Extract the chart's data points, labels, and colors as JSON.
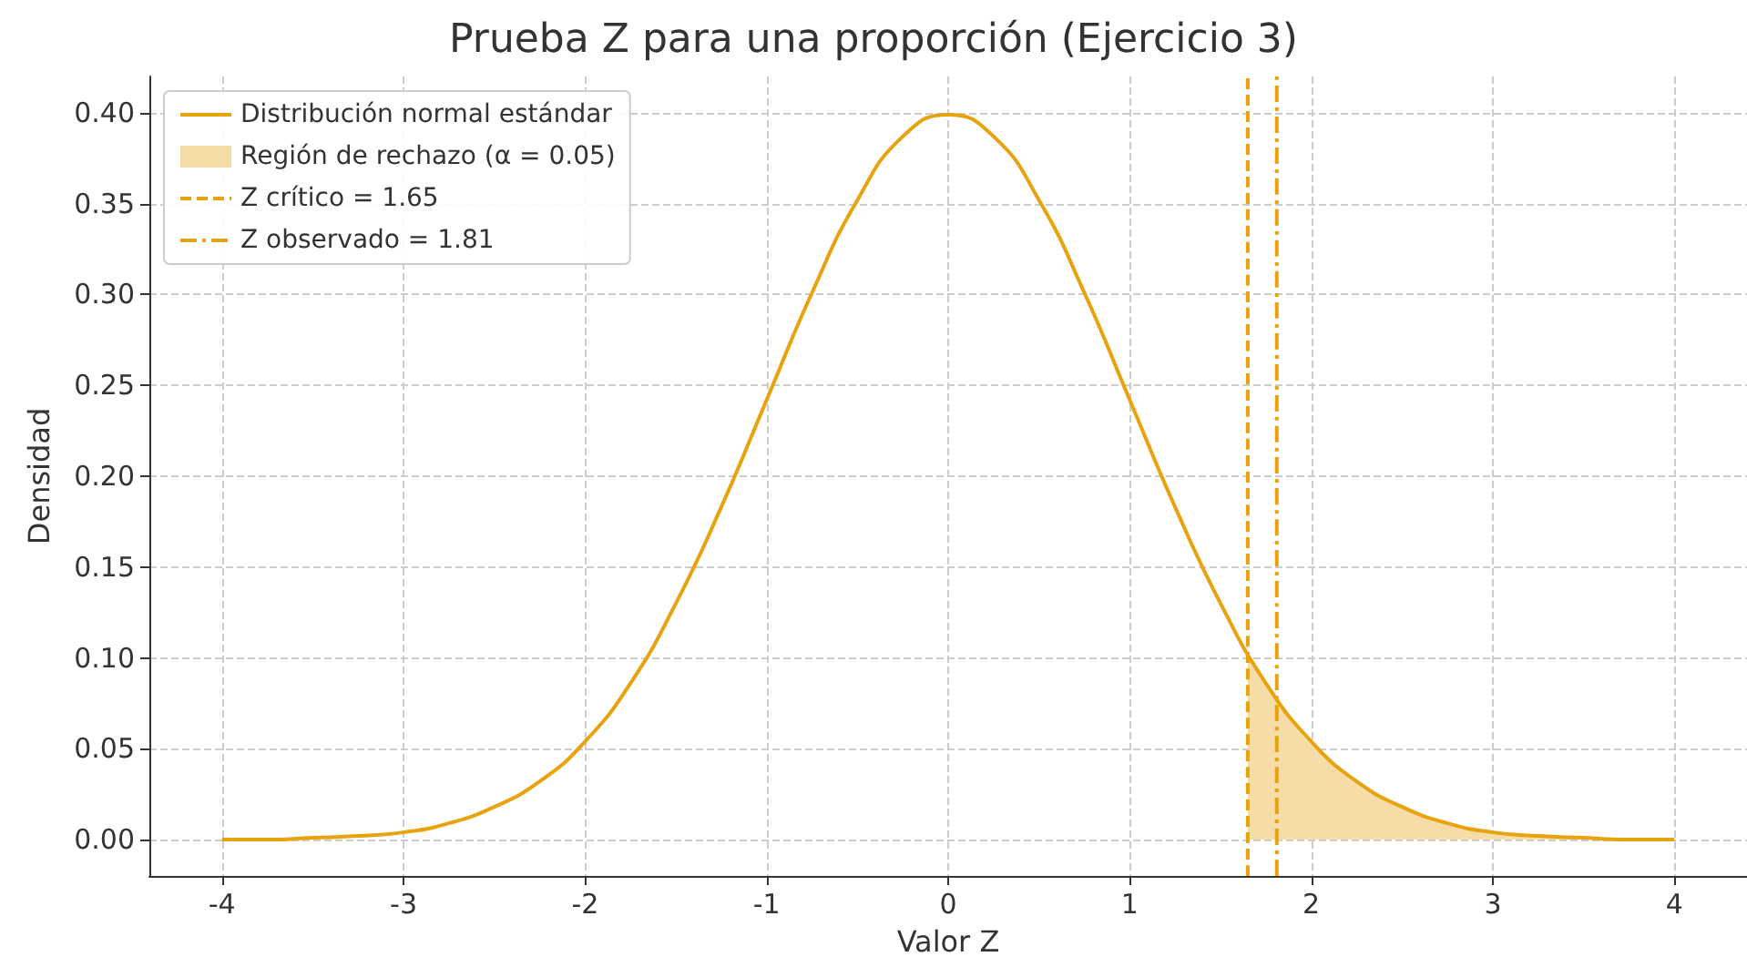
{
  "chart_data": {
    "type": "line",
    "title": "Prueba Z para una proporción (Ejercicio 3)",
    "xlabel": "Valor Z",
    "ylabel": "Densidad",
    "series": [
      {
        "name": "Distribución normal estándar",
        "color": "#e8a20c",
        "x": [
          -4,
          -3.75,
          -3.5,
          -3.25,
          -3,
          -2.75,
          -2.5,
          -2.25,
          -2,
          -1.75,
          -1.5,
          -1.25,
          -1,
          -0.75,
          -0.5,
          -0.25,
          0,
          0.25,
          0.5,
          0.75,
          1,
          1.25,
          1.5,
          1.75,
          2,
          2.25,
          2.5,
          2.75,
          3,
          3.25,
          3.5,
          3.75,
          4
        ],
        "values": [
          0.0,
          0.0,
          0.001,
          0.002,
          0.004,
          0.009,
          0.018,
          0.032,
          0.054,
          0.086,
          0.13,
          0.183,
          0.242,
          0.301,
          0.352,
          0.387,
          0.399,
          0.387,
          0.352,
          0.301,
          0.242,
          0.183,
          0.13,
          0.086,
          0.054,
          0.032,
          0.018,
          0.009,
          0.004,
          0.002,
          0.001,
          0.0,
          0.0
        ]
      },
      {
        "type": "area",
        "name": "Región de rechazo (α = 0.05)",
        "color": "#f6dca6",
        "x": [
          1.65,
          1.75,
          1.81,
          2,
          2.25,
          2.5,
          2.75,
          3,
          3.25,
          3.5,
          3.75,
          4
        ],
        "values": [
          0.102,
          0.086,
          0.078,
          0.054,
          0.032,
          0.018,
          0.009,
          0.004,
          0.002,
          0.001,
          0.0,
          0.0
        ]
      },
      {
        "name": "Z crítico = 1.65",
        "color": "#e8a20c",
        "line_style": "dashed",
        "x": [
          1.65,
          1.65
        ],
        "values": [
          -0.02,
          0.42
        ]
      },
      {
        "name": "Z observado = 1.81",
        "color": "#e8a20c",
        "line_style": "dashdot",
        "x": [
          1.81,
          1.81
        ],
        "values": [
          -0.02,
          0.42
        ]
      }
    ],
    "xlim": [
      -4.4,
      4.4
    ],
    "xticks": [
      -4,
      -3,
      -2,
      -1,
      0,
      1,
      2,
      3,
      4
    ],
    "ylim": [
      -0.02,
      0.42
    ],
    "yticks": [
      {
        "value": 0,
        "label": "0.00"
      },
      {
        "value": 0.05,
        "label": "0.05"
      },
      {
        "value": 0.1,
        "label": "0.10"
      },
      {
        "value": 0.15,
        "label": "0.15"
      },
      {
        "value": 0.2,
        "label": "0.20"
      },
      {
        "value": 0.25,
        "label": "0.25"
      },
      {
        "value": 0.3,
        "label": "0.30"
      },
      {
        "value": 0.35,
        "label": "0.35"
      },
      {
        "value": 0.4,
        "label": "0.40"
      }
    ],
    "grid": true,
    "legend": "top left",
    "marker": "none",
    "line_style": "solid"
  }
}
